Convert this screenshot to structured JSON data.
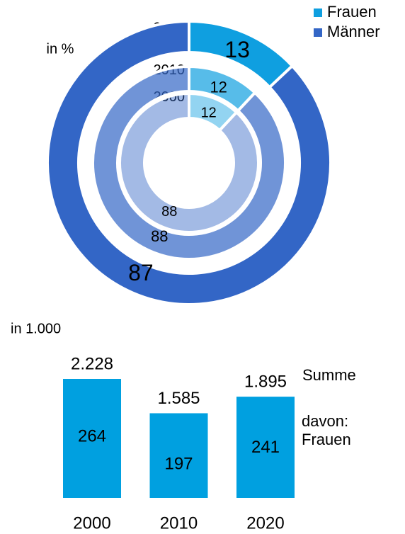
{
  "chart_data": [
    {
      "type": "donut",
      "label": "in %",
      "categories": [
        "2000",
        "2010",
        "2020"
      ],
      "series": [
        {
          "name": "Frauen",
          "color": "#0f9fe0",
          "values": [
            12,
            12,
            13
          ]
        },
        {
          "name": "Männer",
          "color": "#3366c6",
          "values": [
            88,
            88,
            87
          ]
        }
      ],
      "legend": "top-right"
    },
    {
      "type": "bar",
      "label": "in 1.000",
      "categories": [
        "2000",
        "2010",
        "2020"
      ],
      "color": "#00a0e0",
      "series": [
        {
          "name": "Summe",
          "values": [
            2228,
            1585,
            1895
          ],
          "value_labels": [
            "2.228",
            "1.585",
            "1.895"
          ]
        },
        {
          "name": "davon: Frauen",
          "values": [
            264,
            197,
            241
          ]
        }
      ]
    }
  ]
}
